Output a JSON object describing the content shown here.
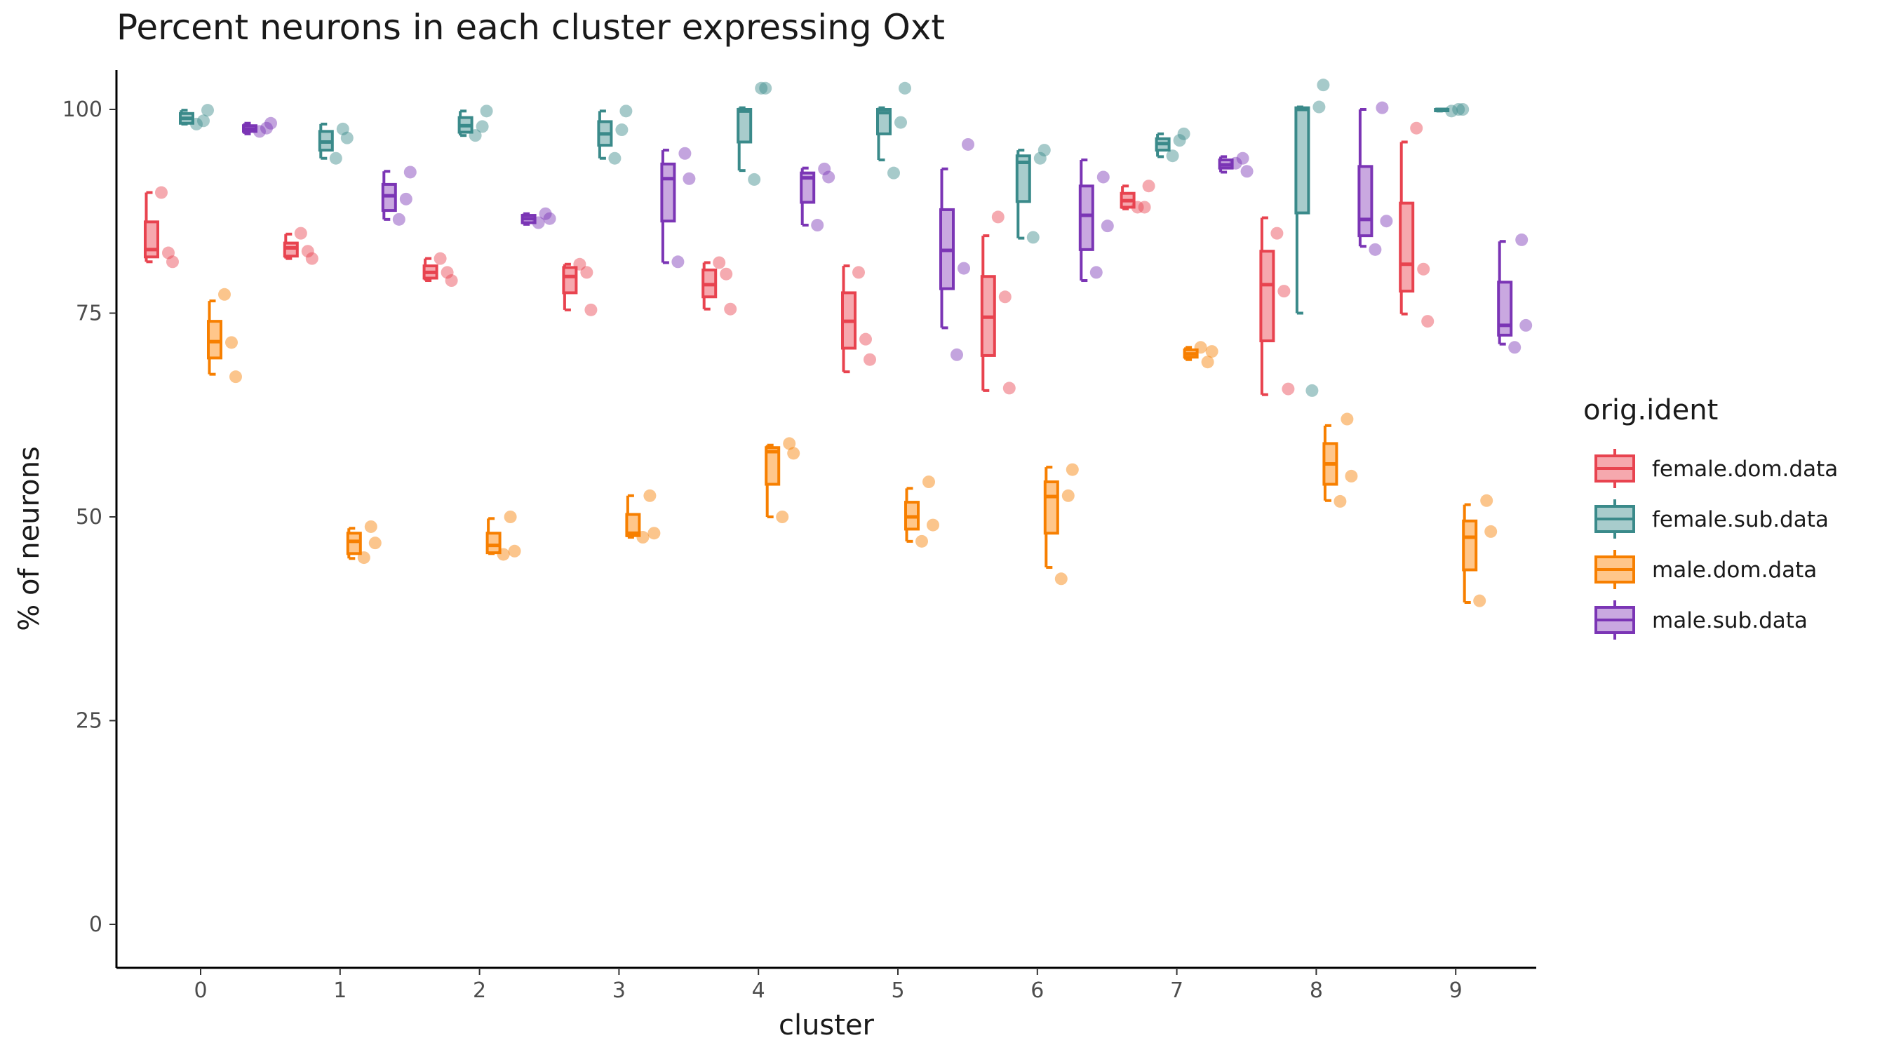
{
  "chart_data": {
    "type": "box",
    "title": "Percent neurons in each cluster expressing Oxt",
    "xlabel": "cluster",
    "ylabel": "% of neurons",
    "categories": [
      "0",
      "1",
      "2",
      "3",
      "4",
      "5",
      "6",
      "7",
      "8",
      "9"
    ],
    "ylim": [
      -5,
      105
    ],
    "yticks": [
      0,
      25,
      50,
      75,
      100
    ],
    "grid": false,
    "legend": {
      "title": "orig.ident",
      "placement": "right"
    },
    "series": [
      {
        "name": "female.dom.data",
        "color": "#e8434f",
        "fill": "#f6a8ae",
        "boxes": [
          {
            "min": 81.3,
            "q1": 81.9,
            "median": 82.8,
            "q3": 86.2,
            "max": 89.8
          },
          {
            "min": 81.7,
            "q1": 82.0,
            "median": 83.0,
            "q3": 83.6,
            "max": 84.7
          },
          {
            "min": 79.0,
            "q1": 79.3,
            "median": 80.0,
            "q3": 80.8,
            "max": 81.7
          },
          {
            "min": 75.4,
            "q1": 77.5,
            "median": 79.5,
            "q3": 80.6,
            "max": 81.0
          },
          {
            "min": 75.5,
            "q1": 77.0,
            "median": 78.5,
            "q3": 80.3,
            "max": 81.2
          },
          {
            "min": 67.8,
            "q1": 70.7,
            "median": 74.0,
            "q3": 77.5,
            "max": 80.8
          },
          {
            "min": 65.5,
            "q1": 69.8,
            "median": 74.5,
            "q3": 79.5,
            "max": 84.5
          },
          {
            "min": 87.8,
            "q1": 88.0,
            "median": 88.8,
            "q3": 89.7,
            "max": 90.6
          },
          {
            "min": 65.0,
            "q1": 71.6,
            "median": 78.5,
            "q3": 82.6,
            "max": 86.7
          },
          {
            "min": 74.9,
            "q1": 77.7,
            "median": 81.0,
            "q3": 88.5,
            "max": 96.0
          }
        ],
        "points": [
          [
            89.8,
            81.3,
            82.4
          ],
          [
            84.8,
            81.7,
            82.6
          ],
          [
            81.7,
            79.0,
            80.0
          ],
          [
            81.0,
            75.4,
            80.0
          ],
          [
            81.2,
            75.5,
            79.8
          ],
          [
            80.0,
            69.3,
            71.8
          ],
          [
            86.8,
            65.8,
            77.0
          ],
          [
            88.0,
            90.6,
            88.0
          ],
          [
            84.8,
            65.7,
            77.7
          ],
          [
            97.7,
            74.0,
            80.4
          ]
        ]
      },
      {
        "name": "female.sub.data",
        "color": "#3a8a8a",
        "fill": "#a8cccc",
        "boxes": [
          {
            "min": 98.2,
            "q1": 98.3,
            "median": 98.9,
            "q3": 99.5,
            "max": 99.9
          },
          {
            "min": 94.0,
            "q1": 95.0,
            "median": 96.0,
            "q3": 97.3,
            "max": 98.2
          },
          {
            "min": 96.8,
            "q1": 97.2,
            "median": 98.0,
            "q3": 99.0,
            "max": 99.8
          },
          {
            "min": 94.0,
            "q1": 95.6,
            "median": 97.0,
            "q3": 98.5,
            "max": 99.8
          },
          {
            "min": 92.5,
            "q1": 96.0,
            "median": 99.8,
            "q3": 100.0,
            "max": 100.2
          },
          {
            "min": 93.8,
            "q1": 97.0,
            "median": 99.6,
            "q3": 100.0,
            "max": 100.2
          },
          {
            "min": 84.2,
            "q1": 88.7,
            "median": 93.5,
            "q3": 94.3,
            "max": 95.0
          },
          {
            "min": 94.2,
            "q1": 95.0,
            "median": 95.8,
            "q3": 96.4,
            "max": 97.0
          },
          {
            "min": 75.0,
            "q1": 87.3,
            "median": 100.0,
            "q3": 100.2,
            "max": 100.3
          },
          {
            "min": 99.8,
            "q1": 99.9,
            "median": 100.0,
            "q3": 100.0,
            "max": 100.0
          }
        ],
        "points": [
          [
            98.2,
            99.9,
            98.6
          ],
          [
            94.0,
            96.5,
            97.6
          ],
          [
            96.8,
            99.8,
            97.9
          ],
          [
            94.0,
            99.8,
            97.5
          ],
          [
            91.4,
            102.6,
            102.6
          ],
          [
            92.2,
            102.6,
            98.4
          ],
          [
            84.3,
            95.0,
            94.0
          ],
          [
            94.3,
            97.0,
            96.2
          ],
          [
            65.5,
            103.0,
            100.3
          ],
          [
            99.8,
            100.0,
            100.0
          ]
        ]
      },
      {
        "name": "male.dom.data",
        "color": "#f77f00",
        "fill": "#ffc68a",
        "boxes": [
          {
            "min": 67.5,
            "q1": 69.5,
            "median": 71.5,
            "q3": 74.0,
            "max": 76.5
          },
          {
            "min": 44.9,
            "q1": 45.5,
            "median": 47.0,
            "q3": 48.0,
            "max": 48.6
          },
          {
            "min": 45.5,
            "q1": 45.6,
            "median": 46.5,
            "q3": 48.0,
            "max": 49.8
          },
          {
            "min": 47.5,
            "q1": 47.7,
            "median": 48.0,
            "q3": 50.3,
            "max": 52.6
          },
          {
            "min": 50.0,
            "q1": 54.0,
            "median": 58.0,
            "q3": 58.5,
            "max": 58.8
          },
          {
            "min": 47.0,
            "q1": 48.5,
            "median": 50.0,
            "q3": 51.8,
            "max": 53.5
          },
          {
            "min": 43.8,
            "q1": 48.0,
            "median": 52.5,
            "q3": 54.3,
            "max": 56.1
          },
          {
            "min": 69.3,
            "q1": 69.6,
            "median": 70.0,
            "q3": 70.5,
            "max": 70.8
          },
          {
            "min": 52.0,
            "q1": 54.0,
            "median": 56.5,
            "q3": 59.0,
            "max": 61.2
          },
          {
            "min": 39.5,
            "q1": 43.5,
            "median": 47.5,
            "q3": 49.5,
            "max": 51.5
          }
        ],
        "points": [
          [
            77.3,
            67.2,
            71.4
          ],
          [
            45.0,
            46.8,
            48.8
          ],
          [
            45.4,
            45.8,
            50.0
          ],
          [
            47.5,
            48.0,
            52.6
          ],
          [
            50.0,
            57.8,
            59.0
          ],
          [
            47.0,
            49.0,
            54.3
          ],
          [
            42.4,
            55.8,
            52.6
          ],
          [
            70.8,
            70.3,
            69.0
          ],
          [
            51.9,
            55.0,
            62.0
          ],
          [
            39.7,
            48.2,
            52.0
          ]
        ]
      },
      {
        "name": "male.sub.data",
        "color": "#7b35b5",
        "fill": "#c9a8e0",
        "boxes": [
          {
            "min": 97.0,
            "q1": 97.3,
            "median": 97.6,
            "q3": 98.0,
            "max": 98.3
          },
          {
            "min": 86.5,
            "q1": 87.6,
            "median": 89.4,
            "q3": 90.8,
            "max": 92.4
          },
          {
            "min": 85.9,
            "q1": 86.1,
            "median": 86.6,
            "q3": 87.0,
            "max": 87.2
          },
          {
            "min": 81.2,
            "q1": 86.3,
            "median": 91.5,
            "q3": 93.3,
            "max": 95.0
          },
          {
            "min": 85.8,
            "q1": 88.6,
            "median": 91.6,
            "q3": 92.2,
            "max": 92.8
          },
          {
            "min": 73.2,
            "q1": 78.0,
            "median": 82.7,
            "q3": 87.7,
            "max": 92.7
          },
          {
            "min": 79.0,
            "q1": 82.8,
            "median": 87.0,
            "q3": 90.6,
            "max": 93.8
          },
          {
            "min": 92.3,
            "q1": 92.8,
            "median": 93.2,
            "q3": 93.8,
            "max": 94.2
          },
          {
            "min": 83.2,
            "q1": 84.5,
            "median": 86.5,
            "q3": 93.0,
            "max": 100.0
          },
          {
            "min": 71.2,
            "q1": 72.3,
            "median": 73.5,
            "q3": 78.8,
            "max": 83.8
          }
        ],
        "points": [
          [
            97.3,
            98.3,
            97.7
          ],
          [
            86.5,
            92.3,
            89.0
          ],
          [
            86.1,
            86.6,
            87.2
          ],
          [
            81.3,
            91.5,
            94.6
          ],
          [
            85.8,
            91.7,
            92.7
          ],
          [
            69.9,
            95.7,
            80.5
          ],
          [
            80.0,
            85.7,
            91.7
          ],
          [
            93.4,
            92.4,
            94.0
          ],
          [
            82.8,
            86.3,
            100.2
          ],
          [
            70.8,
            73.5,
            84.0
          ]
        ]
      }
    ]
  }
}
